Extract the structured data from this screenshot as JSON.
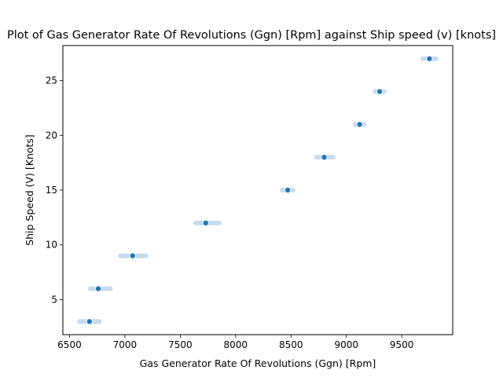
{
  "chart_data": {
    "type": "scatter",
    "title": "Plot of Gas Generator Rate Of Revolutions (Ggn) [Rpm] against Ship speed (v) [knots]",
    "xlabel": "Gas Generator Rate Of Revolutions (Ggn) [Rpm]",
    "ylabel": "Ship Speed (V) [Knots]",
    "xlim": [
      6440,
      9960
    ],
    "ylim": [
      1.8,
      28.2
    ],
    "xticks": [
      6500,
      7000,
      7500,
      8000,
      8500,
      9000,
      9500
    ],
    "yticks": [
      5,
      10,
      15,
      20,
      25
    ],
    "grid": false,
    "colors": {
      "point": "#1f77b4",
      "spread": "#c6dbef"
    },
    "spread": [
      {
        "y": 3,
        "x_min": 6590,
        "x_max": 6770
      },
      {
        "y": 6,
        "x_min": 6690,
        "x_max": 6870
      },
      {
        "y": 9,
        "x_min": 6960,
        "x_max": 7190
      },
      {
        "y": 12,
        "x_min": 7640,
        "x_max": 7850
      },
      {
        "y": 15,
        "x_min": 8420,
        "x_max": 8520
      },
      {
        "y": 18,
        "x_min": 8730,
        "x_max": 8880
      },
      {
        "y": 21,
        "x_min": 9080,
        "x_max": 9160
      },
      {
        "y": 24,
        "x_min": 9260,
        "x_max": 9340
      },
      {
        "y": 27,
        "x_min": 9690,
        "x_max": 9810
      }
    ],
    "points": [
      {
        "x": 6680,
        "y": 3
      },
      {
        "x": 6760,
        "y": 6
      },
      {
        "x": 7070,
        "y": 9
      },
      {
        "x": 7730,
        "y": 12
      },
      {
        "x": 8470,
        "y": 15
      },
      {
        "x": 8800,
        "y": 18
      },
      {
        "x": 9120,
        "y": 21
      },
      {
        "x": 9300,
        "y": 24
      },
      {
        "x": 9750,
        "y": 27
      }
    ]
  }
}
